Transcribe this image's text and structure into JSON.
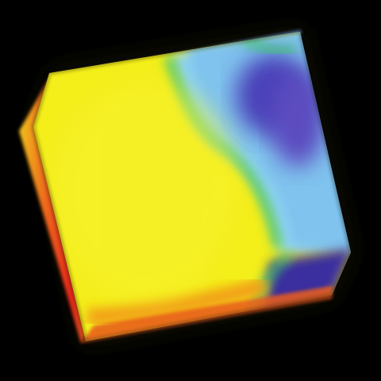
{
  "scene": {
    "subject": "volume-rendered-cube",
    "background_color": "#000000",
    "colormap": [
      "#0a0a7a",
      "#4a3fb8",
      "#6fb7e8",
      "#8fd3f2",
      "#3cc46a",
      "#f4ee1a",
      "#f2a019",
      "#e8281e"
    ],
    "visible_faces": [
      "front-face",
      "left-side-face",
      "top-face",
      "bottom-face"
    ]
  }
}
